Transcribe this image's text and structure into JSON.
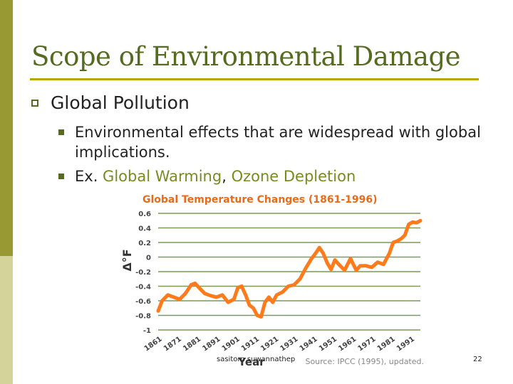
{
  "slide": {
    "title": "Scope of Environmental Damage",
    "bullet": "Global Pollution",
    "sub_bullets": [
      "Environmental effects that are widespread with global implications.",
      {
        "prefix": "Ex. ",
        "item1": "Global Warming",
        "sep": ", ",
        "item2": "Ozone Depletion"
      }
    ],
    "footer_author": "sasitorn suwannathep",
    "page_number": "22"
  },
  "colors": {
    "accent": "#999933",
    "title": "#556b1f",
    "line": "#ff7a1a",
    "chart_title": "#e86b1a"
  },
  "chart_data": {
    "type": "line",
    "title": "Global Temperature Changes (1861-1996)",
    "ylabel": "Δ°F",
    "xlabel": "Year",
    "source": "Source: IPCC (1995), updated.",
    "ylim": [
      -1,
      0.6
    ],
    "yticks": [
      "0.6",
      "0.4",
      "0.2",
      "0",
      "-0.2",
      "-0.4",
      "-0.6",
      "-0.8",
      "-1"
    ],
    "xticks": [
      "1861",
      "1871",
      "1881",
      "1891",
      "1901",
      "1911",
      "1921",
      "1931",
      "1941",
      "1951",
      "1961",
      "1971",
      "1981",
      "1991"
    ],
    "xlim": [
      1861,
      1996
    ],
    "series": [
      {
        "name": "Temperature change",
        "x": [
          1861,
          1863,
          1866,
          1869,
          1872,
          1875,
          1878,
          1880,
          1882,
          1885,
          1888,
          1891,
          1894,
          1897,
          1900,
          1902,
          1904,
          1906,
          1908,
          1910,
          1912,
          1914,
          1916,
          1918,
          1920,
          1922,
          1925,
          1928,
          1931,
          1934,
          1937,
          1940,
          1942,
          1944,
          1946,
          1948,
          1950,
          1952,
          1954,
          1957,
          1960,
          1963,
          1965,
          1968,
          1971,
          1974,
          1977,
          1980,
          1982,
          1984,
          1986,
          1988,
          1990,
          1992,
          1994,
          1996
        ],
        "values": [
          -0.74,
          -0.6,
          -0.52,
          -0.55,
          -0.58,
          -0.5,
          -0.38,
          -0.36,
          -0.42,
          -0.5,
          -0.53,
          -0.55,
          -0.52,
          -0.62,
          -0.58,
          -0.42,
          -0.4,
          -0.52,
          -0.66,
          -0.7,
          -0.8,
          -0.82,
          -0.62,
          -0.55,
          -0.62,
          -0.52,
          -0.48,
          -0.4,
          -0.38,
          -0.3,
          -0.15,
          -0.02,
          0.05,
          0.13,
          0.05,
          -0.08,
          -0.17,
          -0.04,
          -0.1,
          -0.18,
          -0.02,
          -0.18,
          -0.12,
          -0.12,
          -0.14,
          -0.07,
          -0.1,
          0.05,
          0.2,
          0.22,
          0.25,
          0.3,
          0.45,
          0.48,
          0.47,
          0.5
        ]
      }
    ]
  }
}
